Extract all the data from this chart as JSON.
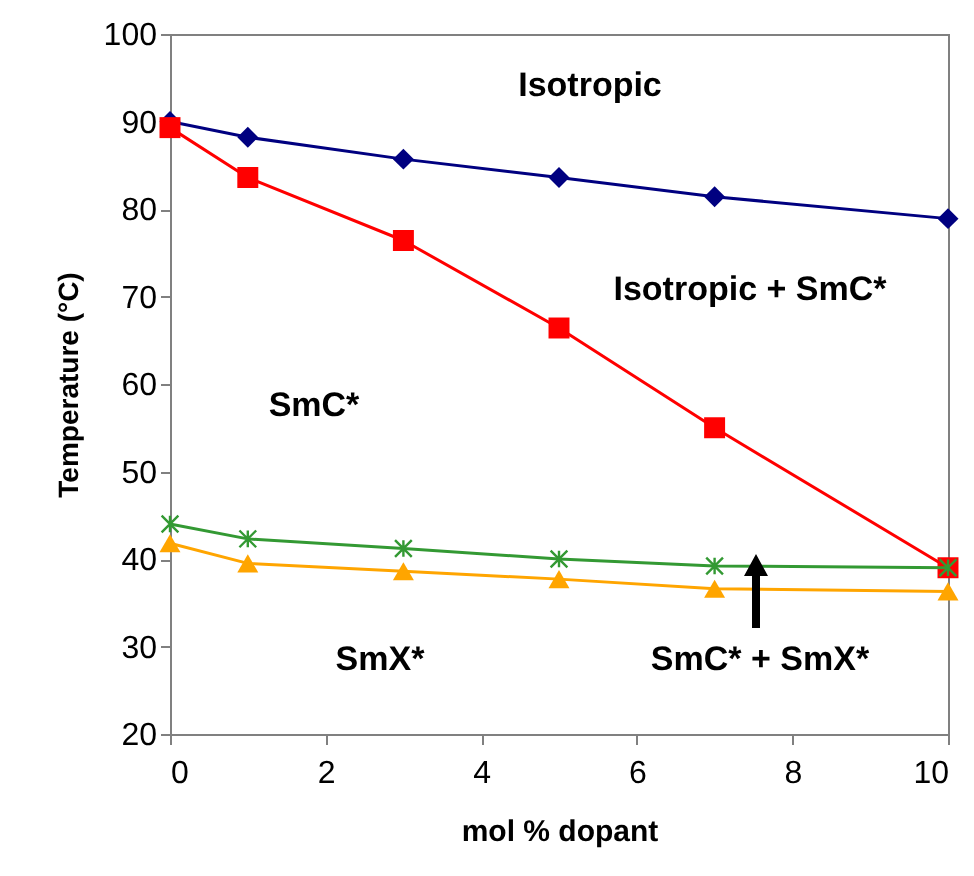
{
  "chart_data": {
    "type": "line",
    "xlabel": "mol % dopant",
    "ylabel": "Temperature (°C)",
    "x": [
      0,
      1,
      3,
      5,
      7,
      10
    ],
    "series": [
      {
        "color": "#000080",
        "marker": "diamond",
        "values": [
          90,
          88.2,
          85.7,
          83.6,
          81.4,
          78.9
        ]
      },
      {
        "color": "#ff0000",
        "marker": "square",
        "values": [
          89.3,
          83.6,
          76.4,
          66.4,
          55,
          39
        ]
      },
      {
        "color": "#339933",
        "marker": "cross",
        "values": [
          44,
          42.3,
          41.2,
          40,
          39.2,
          39
        ]
      },
      {
        "color": "#ffa500",
        "marker": "triangle",
        "values": [
          41.8,
          39.5,
          38.6,
          37.7,
          36.6,
          36.3
        ]
      }
    ],
    "xlim": [
      0,
      10
    ],
    "xticks": [
      0,
      2,
      4,
      6,
      8,
      10
    ],
    "ylim": [
      20,
      100
    ],
    "yticks": [
      20,
      30,
      40,
      50,
      60,
      70,
      80,
      90,
      100
    ],
    "grid": false,
    "annotations": [
      "Isotropic",
      "Isotropic + SmC*",
      "SmC*",
      "SmX*",
      "SmC* + SmX*"
    ]
  }
}
